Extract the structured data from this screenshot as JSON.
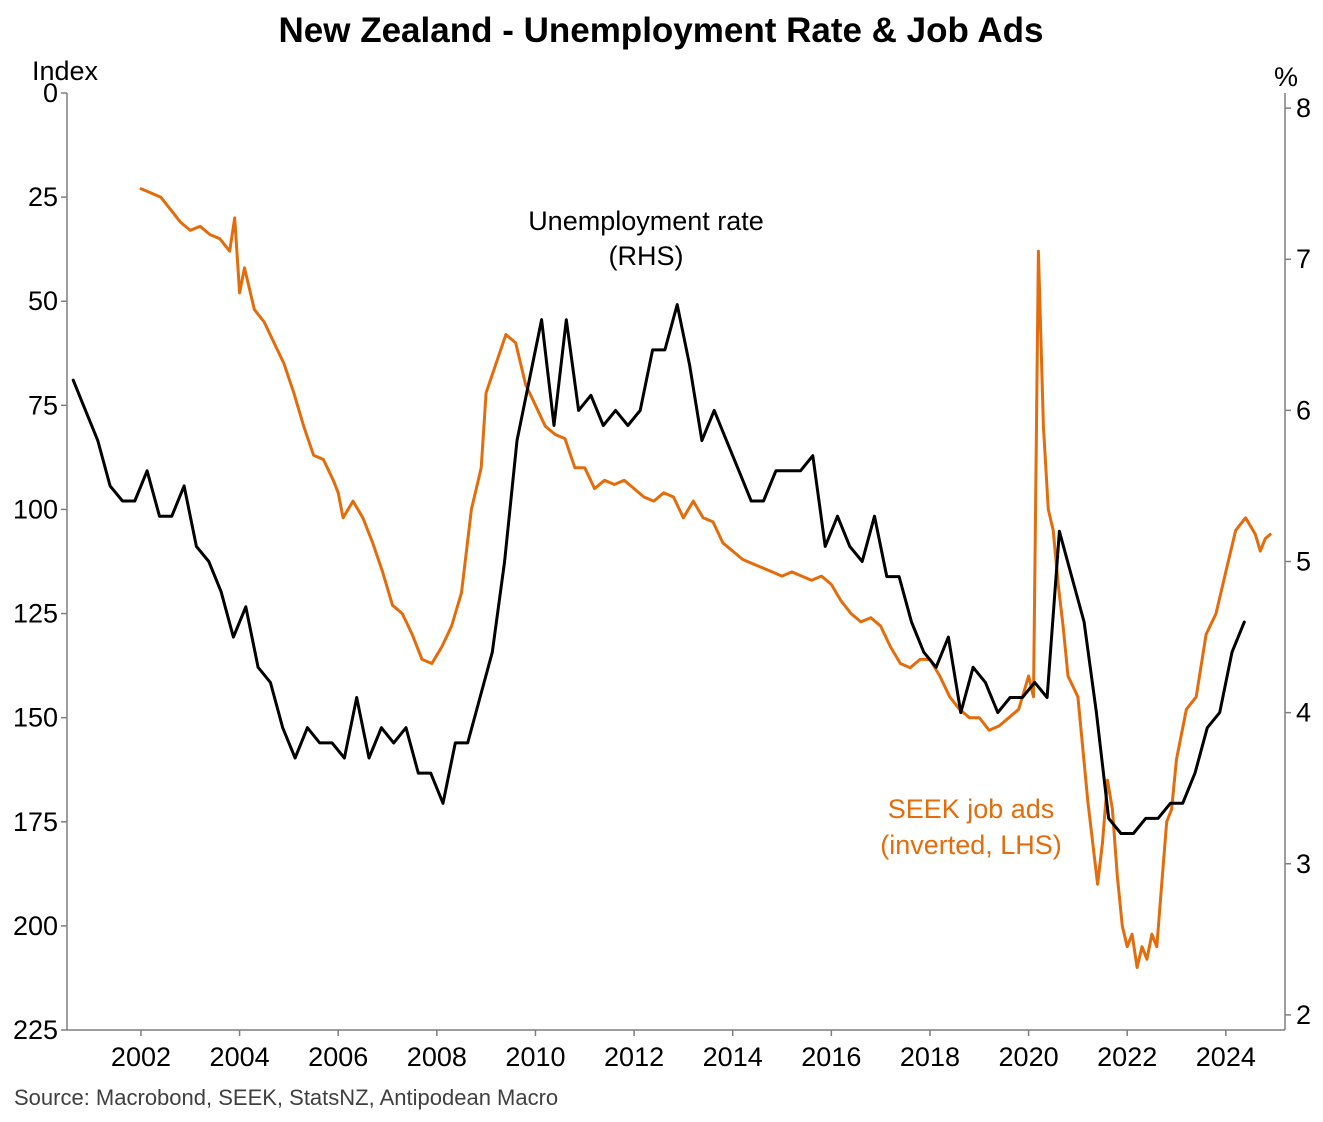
{
  "chart_data": {
    "type": "line",
    "title": "New Zealand - Unemployment Rate & Job Ads",
    "y_left": {
      "label": "Index",
      "range": [
        225,
        0
      ],
      "inverted": true,
      "ticks": [
        0,
        25,
        50,
        75,
        100,
        125,
        150,
        175,
        200,
        225
      ]
    },
    "y_right": {
      "label": "%",
      "range": [
        1.9,
        8.1
      ],
      "ticks": [
        2,
        3,
        4,
        5,
        6,
        7,
        8
      ]
    },
    "x_axis": {
      "range": [
        2000.5,
        2025.2
      ],
      "ticks": [
        2002,
        2004,
        2006,
        2008,
        2010,
        2012,
        2014,
        2016,
        2018,
        2020,
        2022,
        2024
      ]
    },
    "grid": false,
    "legend": "none",
    "annotations": [
      {
        "lines": [
          "Unemployment rate",
          "(RHS)"
        ],
        "color": "#000000"
      },
      {
        "lines": [
          "SEEK job ads",
          "(inverted, LHS)"
        ],
        "color": "#E46C0A"
      }
    ],
    "source": "Source: Macrobond, SEEK, StatsNZ, Antipodean Macro",
    "series": [
      {
        "key": "unemployment",
        "axis": "right",
        "color": "#000000",
        "x": [
          2000.625,
          2000.875,
          2001.125,
          2001.375,
          2001.625,
          2001.875,
          2002.125,
          2002.375,
          2002.625,
          2002.875,
          2003.125,
          2003.375,
          2003.625,
          2003.875,
          2004.125,
          2004.375,
          2004.625,
          2004.875,
          2005.125,
          2005.375,
          2005.625,
          2005.875,
          2006.125,
          2006.375,
          2006.625,
          2006.875,
          2007.125,
          2007.375,
          2007.625,
          2007.875,
          2008.125,
          2008.375,
          2008.625,
          2008.875,
          2009.125,
          2009.375,
          2009.625,
          2009.875,
          2010.125,
          2010.375,
          2010.625,
          2010.875,
          2011.125,
          2011.375,
          2011.625,
          2011.875,
          2012.125,
          2012.375,
          2012.625,
          2012.875,
          2013.125,
          2013.375,
          2013.625,
          2013.875,
          2014.125,
          2014.375,
          2014.625,
          2014.875,
          2015.125,
          2015.375,
          2015.625,
          2015.875,
          2016.125,
          2016.375,
          2016.625,
          2016.875,
          2017.125,
          2017.375,
          2017.625,
          2017.875,
          2018.125,
          2018.375,
          2018.625,
          2018.875,
          2019.125,
          2019.375,
          2019.625,
          2019.875,
          2020.125,
          2020.375,
          2020.625,
          2020.875,
          2021.125,
          2021.375,
          2021.625,
          2021.875,
          2022.125,
          2022.375,
          2022.625,
          2022.875,
          2023.125,
          2023.375,
          2023.625,
          2023.875,
          2024.125,
          2024.375
        ],
        "values": [
          6.2,
          6.0,
          5.8,
          5.5,
          5.4,
          5.4,
          5.6,
          5.3,
          5.3,
          5.5,
          5.1,
          5.0,
          4.8,
          4.5,
          4.7,
          4.3,
          4.2,
          3.9,
          3.7,
          3.9,
          3.8,
          3.8,
          3.7,
          4.1,
          3.7,
          3.9,
          3.8,
          3.9,
          3.6,
          3.6,
          3.4,
          3.8,
          3.8,
          4.1,
          4.4,
          5.0,
          5.8,
          6.2,
          6.6,
          5.9,
          6.6,
          6.0,
          6.1,
          5.9,
          6.0,
          5.9,
          6.0,
          6.4,
          6.4,
          6.7,
          6.3,
          5.8,
          6.0,
          5.8,
          5.6,
          5.4,
          5.4,
          5.6,
          5.6,
          5.6,
          5.7,
          5.1,
          5.3,
          5.1,
          5.0,
          5.3,
          4.9,
          4.9,
          4.6,
          4.4,
          4.3,
          4.5,
          4.0,
          4.3,
          4.2,
          4.0,
          4.1,
          4.1,
          4.2,
          4.1,
          5.2,
          4.9,
          4.6,
          4.0,
          3.3,
          3.2,
          3.2,
          3.3,
          3.3,
          3.4,
          3.4,
          3.6,
          3.9,
          4.0,
          4.4,
          4.6
        ]
      },
      {
        "key": "seek",
        "axis": "left",
        "color": "#E46C0A",
        "x": [
          2002.0,
          2002.2,
          2002.4,
          2002.6,
          2002.8,
          2003.0,
          2003.2,
          2003.4,
          2003.6,
          2003.8,
          2003.9,
          2004.0,
          2004.1,
          2004.3,
          2004.5,
          2004.7,
          2004.9,
          2005.1,
          2005.3,
          2005.5,
          2005.7,
          2005.9,
          2006.0,
          2006.1,
          2006.3,
          2006.5,
          2006.7,
          2006.9,
          2007.1,
          2007.3,
          2007.5,
          2007.7,
          2007.9,
          2008.0,
          2008.1,
          2008.3,
          2008.5,
          2008.7,
          2008.9,
          2009.0,
          2009.2,
          2009.4,
          2009.6,
          2009.8,
          2010.0,
          2010.2,
          2010.4,
          2010.6,
          2010.8,
          2011.0,
          2011.2,
          2011.4,
          2011.6,
          2011.8,
          2012.0,
          2012.2,
          2012.4,
          2012.6,
          2012.8,
          2013.0,
          2013.2,
          2013.4,
          2013.6,
          2013.8,
          2014.0,
          2014.2,
          2014.4,
          2014.6,
          2014.8,
          2015.0,
          2015.2,
          2015.4,
          2015.6,
          2015.8,
          2016.0,
          2016.2,
          2016.4,
          2016.6,
          2016.8,
          2017.0,
          2017.2,
          2017.4,
          2017.6,
          2017.8,
          2018.0,
          2018.2,
          2018.4,
          2018.6,
          2018.8,
          2019.0,
          2019.2,
          2019.4,
          2019.6,
          2019.8,
          2020.0,
          2020.1,
          2020.2,
          2020.3,
          2020.4,
          2020.5,
          2020.6,
          2020.7,
          2020.8,
          2021.0,
          2021.2,
          2021.4,
          2021.5,
          2021.6,
          2021.7,
          2021.8,
          2021.9,
          2022.0,
          2022.1,
          2022.2,
          2022.3,
          2022.4,
          2022.5,
          2022.6,
          2022.7,
          2022.8,
          2022.9,
          2023.0,
          2023.2,
          2023.4,
          2023.6,
          2023.8,
          2024.0,
          2024.2,
          2024.4,
          2024.6,
          2024.7,
          2024.8,
          2024.9
        ],
        "values": [
          23,
          24,
          25,
          28,
          31,
          33,
          32,
          34,
          35,
          38,
          30,
          48,
          42,
          52,
          55,
          60,
          65,
          72,
          80,
          87,
          88,
          93,
          96,
          102,
          98,
          102,
          108,
          115,
          123,
          125,
          130,
          136,
          137,
          135,
          133,
          128,
          120,
          100,
          90,
          72,
          65,
          58,
          60,
          70,
          75,
          80,
          82,
          83,
          90,
          90,
          95,
          93,
          94,
          93,
          95,
          97,
          98,
          96,
          97,
          102,
          98,
          102,
          103,
          108,
          110,
          112,
          113,
          114,
          115,
          116,
          115,
          116,
          117,
          116,
          118,
          122,
          125,
          127,
          126,
          128,
          133,
          137,
          138,
          136,
          136,
          140,
          145,
          148,
          150,
          150,
          153,
          152,
          150,
          148,
          140,
          145,
          38,
          80,
          100,
          105,
          118,
          128,
          140,
          145,
          170,
          190,
          180,
          165,
          172,
          188,
          200,
          205,
          202,
          210,
          205,
          208,
          202,
          205,
          190,
          175,
          172,
          160,
          148,
          145,
          130,
          125,
          115,
          105,
          102,
          106,
          110,
          107,
          106
        ]
      }
    ]
  }
}
